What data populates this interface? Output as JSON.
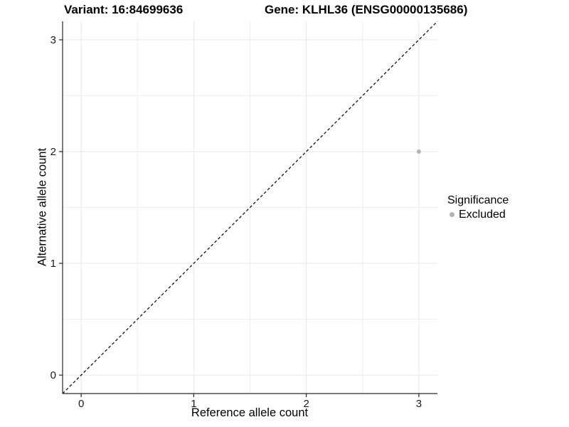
{
  "chart_data": {
    "type": "scatter",
    "titles": {
      "left": "Variant: 16:84699636",
      "right": "Gene: KLHL36 (ENSG00000135686)"
    },
    "xlabel": "Reference allele count",
    "ylabel": "Alternative allele count",
    "xlim": [
      -0.165,
      3.165
    ],
    "ylim": [
      -0.165,
      3.165
    ],
    "x_ticks": [
      0,
      1,
      2,
      3
    ],
    "y_ticks": [
      0,
      1,
      2,
      3
    ],
    "minor_ticks": [
      0.5,
      1.5,
      2.5
    ],
    "grid": true,
    "identity_line": {
      "style": "dashed",
      "equation": "y = x",
      "color": "#000000"
    },
    "points": [
      {
        "x": 3,
        "y": 2,
        "significance": "Excluded",
        "color": "#b4b4b4"
      }
    ],
    "legend": {
      "title": "Significance",
      "position": "right",
      "items": [
        {
          "label": "Excluded",
          "color": "#b3b3b3"
        }
      ]
    },
    "colors": {
      "background": "#ffffff",
      "grid_major": "#e7e7e7",
      "grid_minor": "#efefef",
      "axis": "#262626",
      "text": "#000000"
    }
  }
}
